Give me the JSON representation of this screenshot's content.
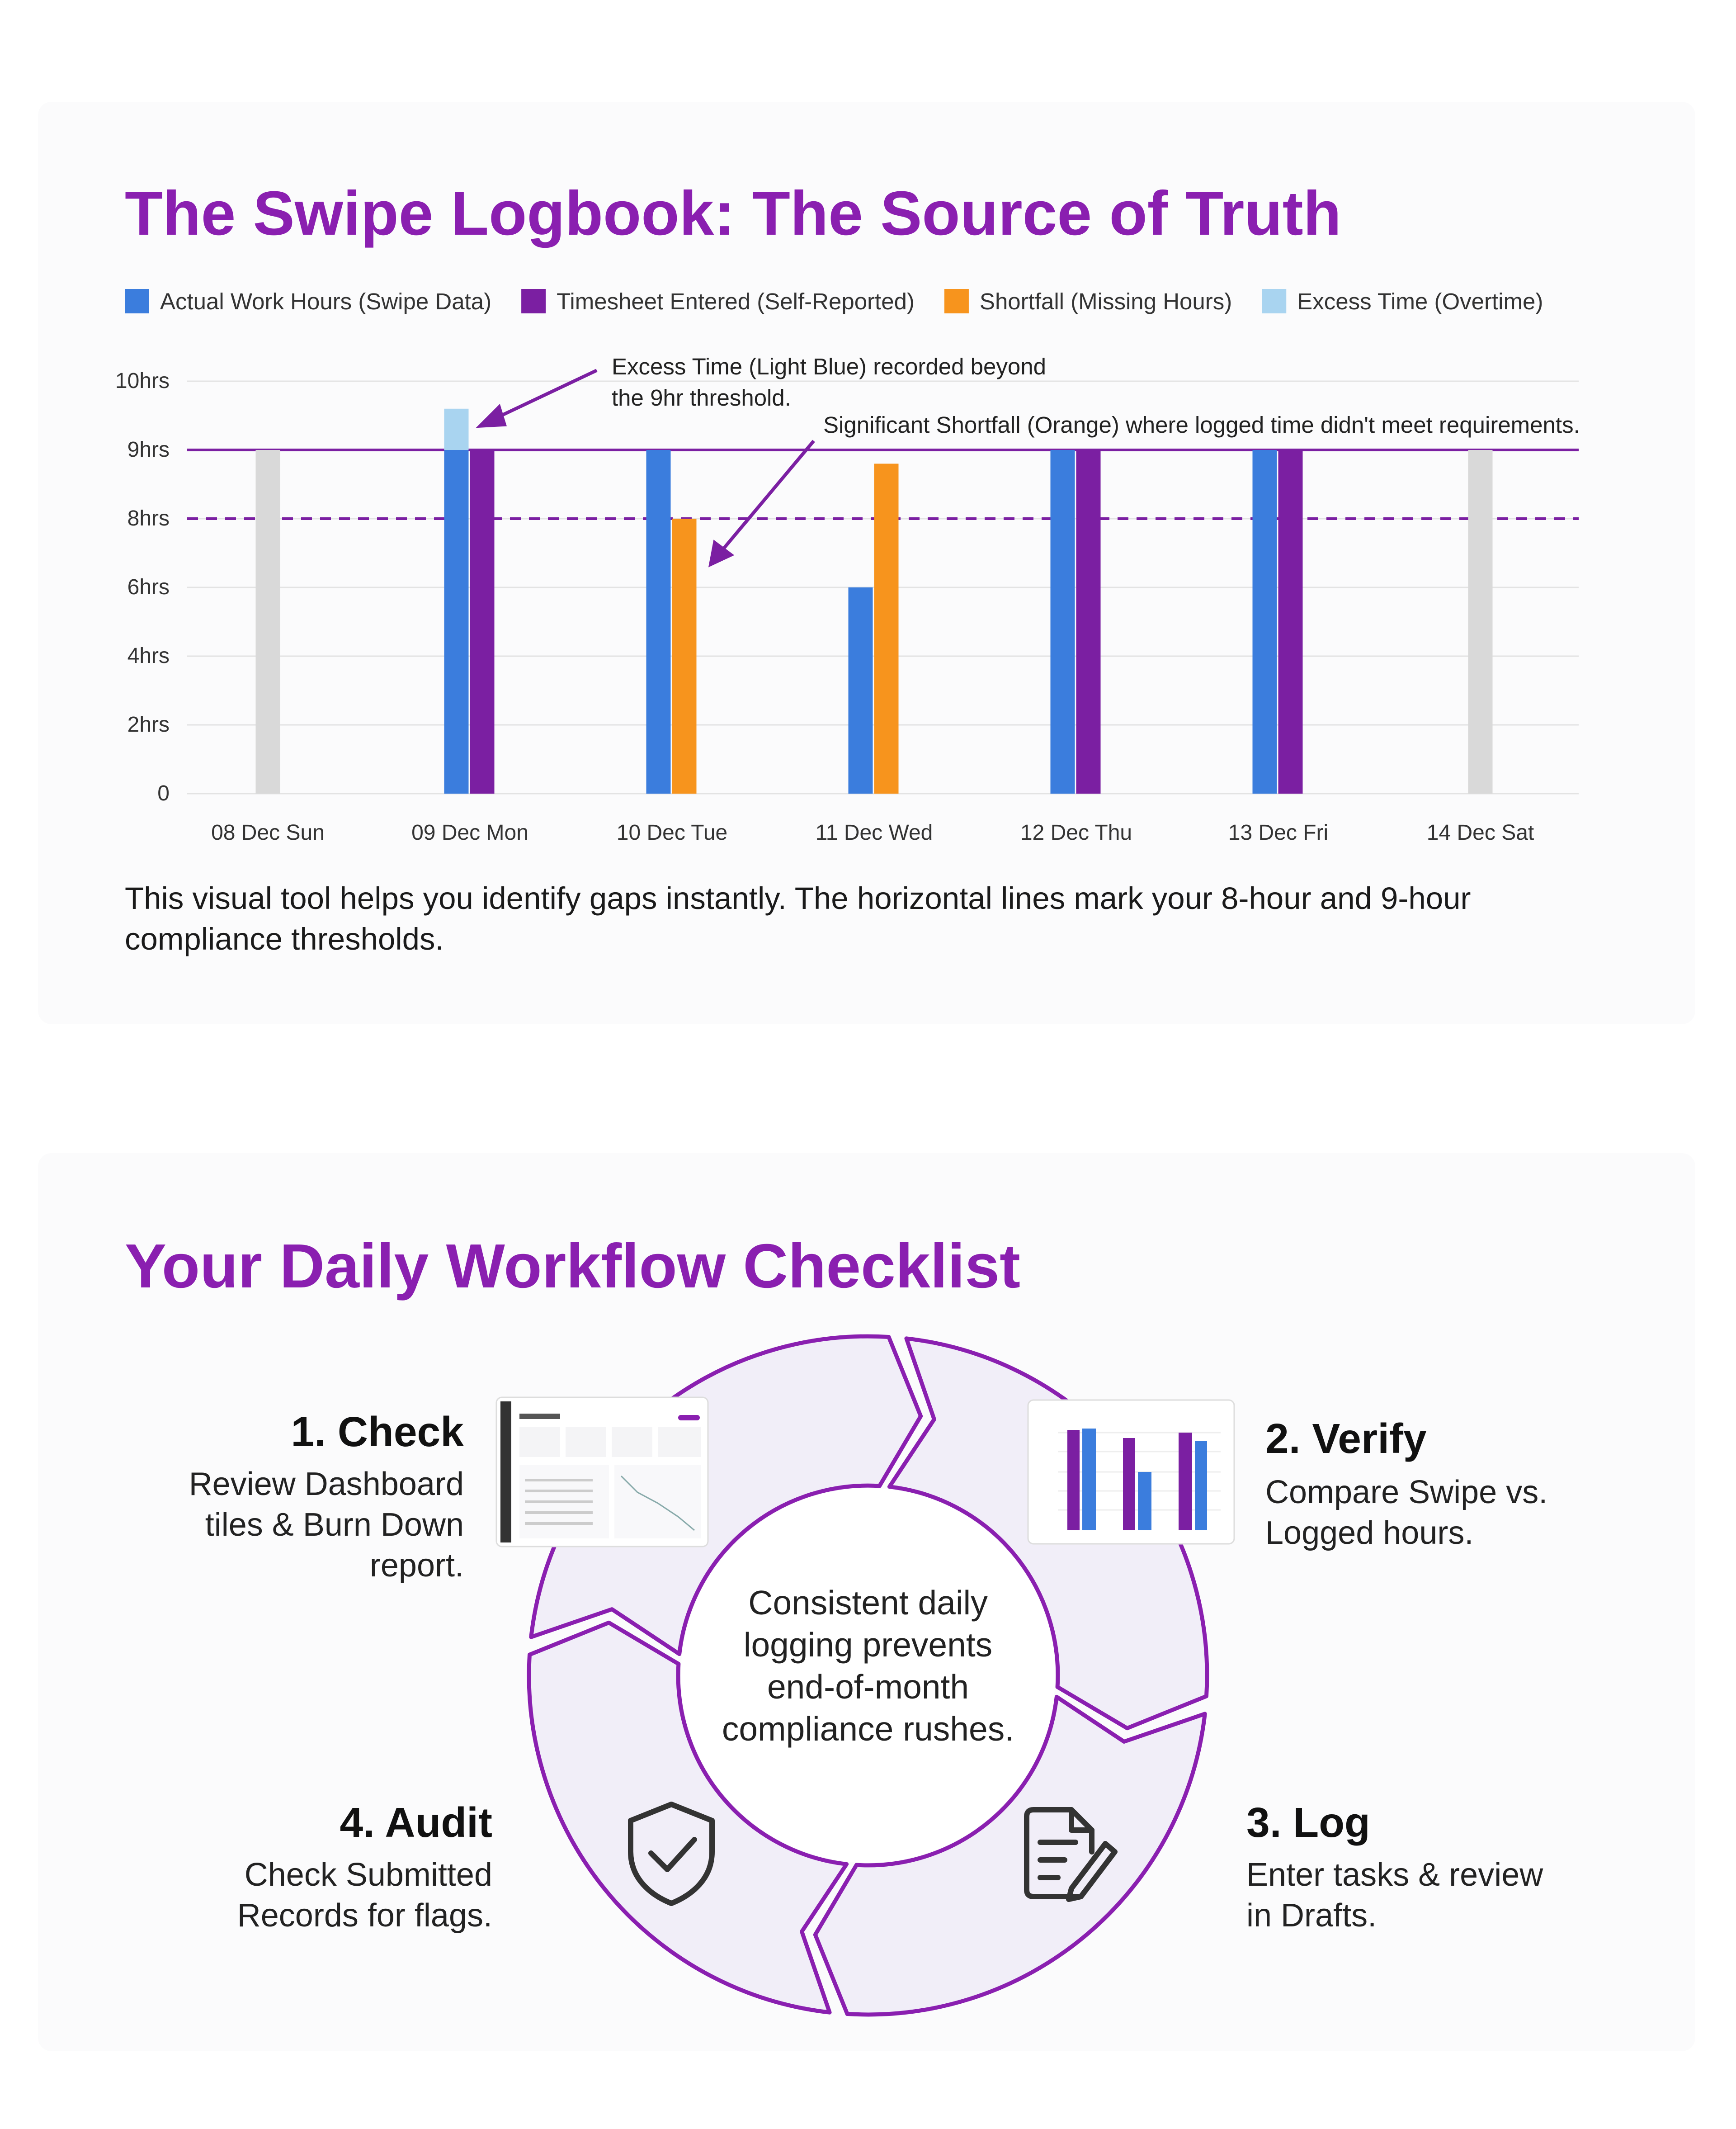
{
  "chart_data": {
    "type": "bar",
    "title": "The Swipe Logbook: The Source of Truth",
    "categories": [
      "08 Dec Sun",
      "09 Dec Mon",
      "10 Dec Tue",
      "11 Dec Wed",
      "12 Dec Thu",
      "13 Dec Fri",
      "14 Dec Sat"
    ],
    "series": [
      {
        "name": "Actual Work Hours (Swipe Data)",
        "color": "#3b7ddd",
        "values": [
          null,
          9,
          9,
          6,
          9,
          9,
          null
        ]
      },
      {
        "name": "Timesheet Entered (Self-Reported)",
        "color": "#7b1fa2",
        "values": [
          null,
          9,
          null,
          null,
          9,
          9,
          null
        ]
      },
      {
        "name": "Shortfall (Missing Hours)",
        "color": "#f7941d",
        "values": [
          null,
          null,
          8,
          8.8,
          null,
          null,
          null
        ]
      },
      {
        "name": "Excess Time (Overtime)",
        "color": "#a9d4f0",
        "values": [
          null,
          0.6,
          null,
          null,
          null,
          null,
          null
        ],
        "stacked": true
      },
      {
        "color": "#d9d9d9",
        "values": [
          9,
          null,
          null,
          null,
          null,
          null,
          9
        ]
      }
    ],
    "ylim": [
      0,
      10
    ],
    "yticks": [
      0,
      {
        "value": 2,
        "label": "2hrs"
      },
      {
        "value": 4,
        "label": "4hrs"
      },
      {
        "value": 6,
        "label": "6hrs"
      },
      {
        "value": 8,
        "label": "8hrs"
      },
      {
        "value": 9,
        "label": "9hrs"
      },
      {
        "value": 10,
        "label": "10hrs"
      }
    ],
    "grid": true,
    "legend": "top",
    "reference_color": "#7b1fa2",
    "reference_lines": [
      {
        "value": 9,
        "style": "solid"
      },
      {
        "value": 8,
        "style": "dashed"
      }
    ],
    "annotations": [
      {
        "lines": [
          "Excess Time (Light Blue) recorded beyond",
          "the 9hr threshold."
        ]
      },
      {
        "lines": [
          "Significant Shortfall (Orange) where logged time didn't meet requirements."
        ]
      }
    ]
  },
  "caption": [
    "This visual tool helps you identify gaps instantly. The horizontal lines mark your 8-hour and 9-hour",
    "compliance thresholds."
  ],
  "workflow": {
    "title": "Your Daily Workflow Checklist",
    "center": [
      "Consistent daily",
      "logging prevents",
      "end-of-month",
      "compliance rushes."
    ],
    "steps": [
      {
        "title": "1. Check",
        "description": [
          "Review Dashboard",
          "tiles & Burn Down",
          "report."
        ]
      },
      {
        "title": "2. Verify",
        "description": [
          "Compare Swipe vs.",
          "Logged hours."
        ]
      },
      {
        "title": "3. Log",
        "description": [
          "Enter tasks & review",
          "in Drafts."
        ]
      },
      {
        "title": "4. Audit",
        "description": [
          "Check Submitted",
          "Records for flags."
        ]
      }
    ]
  }
}
